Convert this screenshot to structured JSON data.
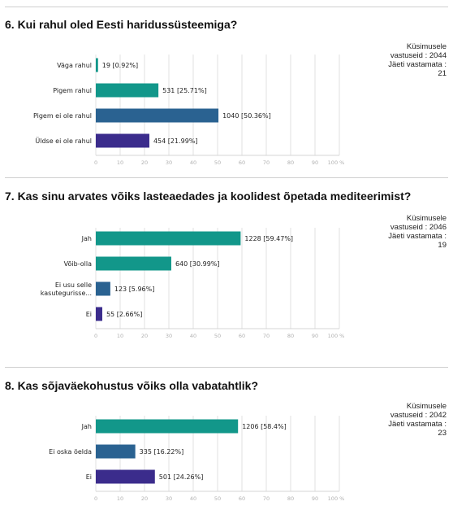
{
  "questions": [
    {
      "title": "6. Kui rahul oled Eesti haridussüsteemiga?",
      "stats": {
        "answered_label": "Küsimusele",
        "answered_text": "vastuseid : 2044",
        "skipped_label": "Jäeti vastamata :",
        "skipped_value": "21"
      }
    },
    {
      "title": "7. Kas sinu arvates võiks lasteaedades ja koolidest õpetada mediteerimist?",
      "stats": {
        "answered_label": "Küsimusele",
        "answered_text": "vastuseid : 2046",
        "skipped_label": "Jäeti vastamata :",
        "skipped_value": "19"
      }
    },
    {
      "title": "8. Kas sõjaväekohustus võiks olla vabatahtlik?",
      "stats": {
        "answered_label": "Küsimusele",
        "answered_text": "vastuseid : 2042",
        "skipped_label": "Jäeti vastamata :",
        "skipped_value": "23"
      }
    }
  ],
  "colors": {
    "green": "#12978a",
    "blue": "#2a6291",
    "purple": "#3b2c8c",
    "axis_text": "#b0b0b0",
    "grid": "#e2e2e2"
  },
  "chart_data": [
    {
      "type": "bar",
      "orientation": "horizontal",
      "xlim": [
        0,
        100
      ],
      "x_ticks": [
        "0",
        "10",
        "20",
        "30",
        "40",
        "50",
        "60",
        "70",
        "80",
        "90",
        "100 %"
      ],
      "categories": [
        [
          "Väga rahul"
        ],
        [
          "Pigem rahul"
        ],
        [
          "Pigem ei ole rahul"
        ],
        [
          "Üldse ei ole rahul"
        ]
      ],
      "values": [
        0.92,
        25.71,
        50.36,
        21.99
      ],
      "labels": [
        "19 [0.92%]",
        "531 [25.71%]",
        "1040 [50.36%]",
        "454 [21.99%]"
      ],
      "colors": [
        "#12978a",
        "#12978a",
        "#2a6291",
        "#3b2c8c"
      ]
    },
    {
      "type": "bar",
      "orientation": "horizontal",
      "xlim": [
        0,
        100
      ],
      "x_ticks": [
        "0",
        "10",
        "20",
        "30",
        "40",
        "50",
        "60",
        "70",
        "80",
        "90",
        "100 %"
      ],
      "categories": [
        [
          "Jah"
        ],
        [
          "Võib-olla"
        ],
        [
          "Ei usu selle",
          "kasutegurisse..."
        ],
        [
          "Ei"
        ]
      ],
      "values": [
        59.47,
        30.99,
        5.96,
        2.66
      ],
      "labels": [
        "1228 [59.47%]",
        "640 [30.99%]",
        "123 [5.96%]",
        "55 [2.66%]"
      ],
      "colors": [
        "#12978a",
        "#12978a",
        "#2a6291",
        "#3b2c8c"
      ]
    },
    {
      "type": "bar",
      "orientation": "horizontal",
      "xlim": [
        0,
        100
      ],
      "x_ticks": [
        "0",
        "10",
        "20",
        "30",
        "40",
        "50",
        "60",
        "70",
        "80",
        "90",
        "100 %"
      ],
      "categories": [
        [
          "Jah"
        ],
        [
          "Ei oska öelda"
        ],
        [
          "Ei"
        ]
      ],
      "values": [
        58.4,
        16.22,
        24.26
      ],
      "labels": [
        "1206 [58.4%]",
        "335 [16.22%]",
        "501 [24.26%]"
      ],
      "colors": [
        "#12978a",
        "#2a6291",
        "#3b2c8c"
      ]
    }
  ]
}
